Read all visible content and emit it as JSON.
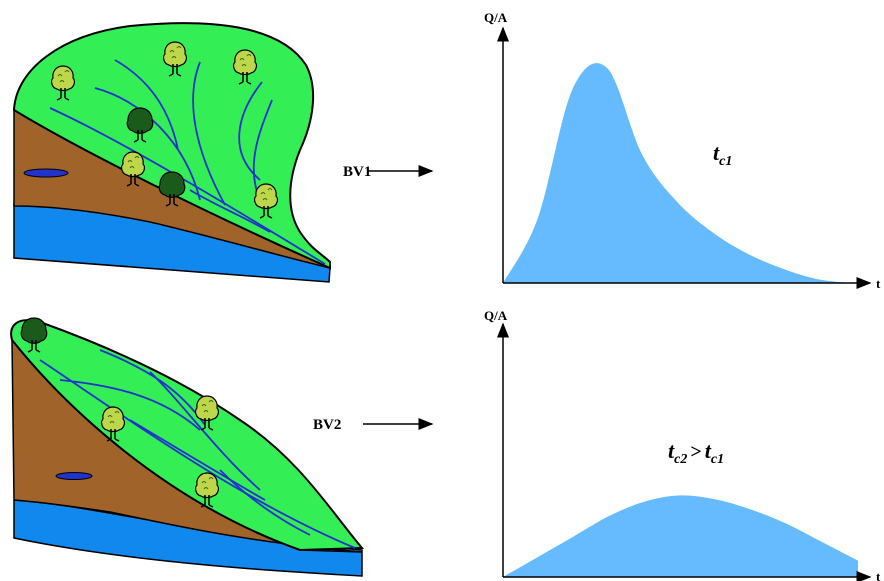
{
  "colors": {
    "hillslope_green": "#33ee55",
    "soil_brown": "#a0642a",
    "groundwater_blue": "#1188ee",
    "river_blue": "#2233cc",
    "hydrograph_fill": "#66bbff",
    "tree_dark": "#1a5a1a",
    "tree_light": "#bdd64a"
  },
  "basins": [
    {
      "label": "BV1",
      "axis_y": "Q/A",
      "axis_x": "t",
      "annotation": {
        "t": "t",
        "sub": "c1"
      }
    },
    {
      "label": "BV2",
      "axis_y": "Q/A",
      "axis_x": "t",
      "annotation": {
        "t1": "t",
        "sub1": "c2",
        "op": ">",
        "t2": "t",
        "sub2": "c1"
      }
    }
  ],
  "chart_data": [
    {
      "type": "area",
      "shape": "sharp hydrograph, early high peak",
      "x": [
        0,
        1,
        2,
        3,
        4,
        5,
        6,
        7,
        8,
        9,
        10
      ],
      "y": [
        0,
        0.3,
        0.9,
        1.0,
        0.6,
        0.38,
        0.24,
        0.14,
        0.07,
        0.02,
        0
      ],
      "xlabel": "t",
      "ylabel": "Q/A"
    },
    {
      "type": "area",
      "shape": "flat hydrograph, later low peak",
      "x": [
        0,
        1,
        2,
        3,
        4,
        5,
        6,
        7,
        8,
        9,
        10
      ],
      "y": [
        0,
        0.1,
        0.2,
        0.3,
        0.37,
        0.4,
        0.38,
        0.33,
        0.26,
        0.17,
        0.08
      ],
      "xlabel": "t",
      "ylabel": "Q/A"
    }
  ]
}
